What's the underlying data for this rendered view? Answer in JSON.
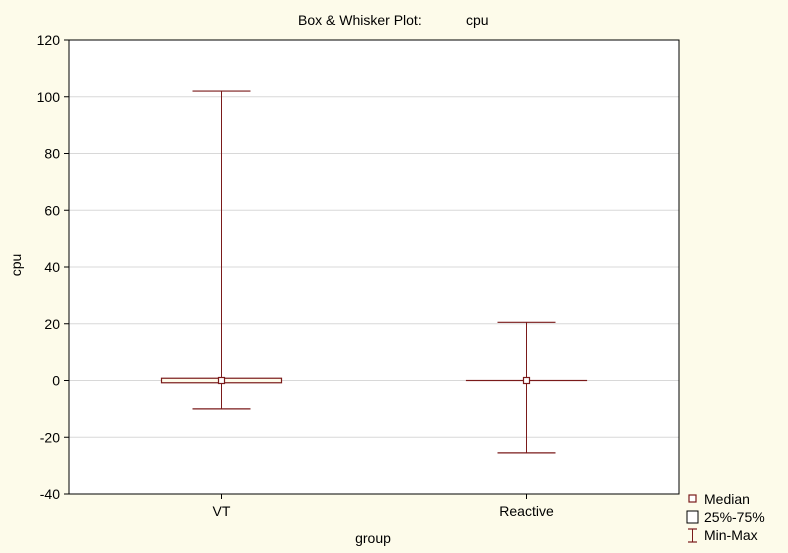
{
  "chart_data": {
    "type": "box",
    "title_prefix": "Box & Whisker Plot:",
    "title_variable": "cpu",
    "xlabel": "group",
    "ylabel": "cpu",
    "ylim": [
      -40,
      120
    ],
    "yticks": [
      -40,
      -20,
      0,
      20,
      40,
      60,
      80,
      100,
      120
    ],
    "grid": true,
    "categories": [
      "VT",
      "Reactive"
    ],
    "boxes": [
      {
        "category": "VT",
        "median": 0,
        "q1": -0.8,
        "q3": 0.8,
        "min": -10,
        "max": 102
      },
      {
        "category": "Reactive",
        "median": 0,
        "q1": 0,
        "q3": 0,
        "min": -25.5,
        "max": 20.5
      }
    ],
    "legend": {
      "position": "bottom-right",
      "items": [
        {
          "label": "Median",
          "marker": "median"
        },
        {
          "label": "25%-75%",
          "marker": "box"
        },
        {
          "label": "Min-Max",
          "marker": "whisker"
        }
      ]
    },
    "colors": {
      "background": "#fdfbea",
      "plot_background": "#ffffff",
      "series": "#7a1a1a",
      "box_fill": "#fdfbea",
      "grid": "#d8d8d8"
    }
  }
}
